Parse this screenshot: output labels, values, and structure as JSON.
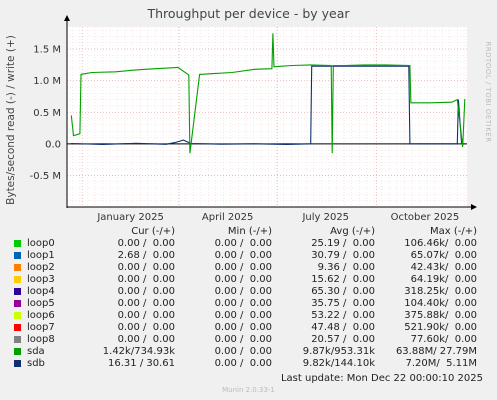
{
  "title": "Throughput per device - by year",
  "watermark": "RRDTOOL / TOBI OETIKER",
  "chart_data": {
    "type": "line",
    "title": "Throughput per device - by year",
    "ylabel": "Bytes/second read (-) / write (+)",
    "ylim": [
      -1000000,
      1850000
    ],
    "yticks": [
      {
        "value": 1500000,
        "label": "1.5 M"
      },
      {
        "value": 1000000,
        "label": "1.0 M"
      },
      {
        "value": 500000,
        "label": "0.5 M"
      },
      {
        "value": 0,
        "label": "0.0"
      },
      {
        "value": -500000,
        "label": "-0.5 M"
      }
    ],
    "xticks": [
      "January 2025",
      "April 2025",
      "July 2025",
      "October 2025"
    ],
    "grid": true,
    "series": [
      {
        "name": "sda",
        "color": "#00a000",
        "x": [
          "2024-12-22",
          "2024-12-24",
          "2024-12-30",
          "2024-12-31",
          "2025-01-10",
          "2025-02-01",
          "2025-02-20",
          "2025-03-10",
          "2025-03-31",
          "2025-04-10",
          "2025-04-11",
          "2025-04-20",
          "2025-05-01",
          "2025-05-20",
          "2025-06-10",
          "2025-06-26",
          "2025-06-27",
          "2025-06-28",
          "2025-07-05",
          "2025-07-15",
          "2025-08-01",
          "2025-08-20",
          "2025-08-21",
          "2025-08-22",
          "2025-09-01",
          "2025-09-20",
          "2025-10-10",
          "2025-11-01",
          "2025-11-02",
          "2025-11-20",
          "2025-12-10",
          "2025-12-15",
          "2025-12-20",
          "2025-12-22"
        ],
        "y": [
          450000,
          130000,
          160000,
          1100000,
          1130000,
          1140000,
          1170000,
          1190000,
          1210000,
          1090000,
          -150000,
          1100000,
          1110000,
          1130000,
          1180000,
          1190000,
          1750000,
          1220000,
          1230000,
          1240000,
          1250000,
          1240000,
          -150000,
          1240000,
          1240000,
          1250000,
          1250000,
          1240000,
          650000,
          650000,
          660000,
          700000,
          -50000,
          710000
        ]
      },
      {
        "name": "sdb",
        "color": "#0f2f6f",
        "x": [
          "2024-12-22",
          "2025-01-20",
          "2025-02-20",
          "2025-03-20",
          "2025-03-28",
          "2025-04-05",
          "2025-04-12",
          "2025-05-10",
          "2025-06-10",
          "2025-07-10",
          "2025-08-01",
          "2025-08-02",
          "2025-09-01",
          "2025-10-01",
          "2025-10-31",
          "2025-11-01",
          "2025-12-15",
          "2025-12-16",
          "2025-12-19",
          "2025-12-22"
        ],
        "y": [
          5000,
          -10000,
          8000,
          -8000,
          20000,
          60000,
          5000,
          -5000,
          0,
          -10000,
          0,
          1230000,
          1230000,
          1230000,
          1230000,
          0,
          0,
          700000,
          0,
          0
        ]
      },
      {
        "name": "loop0",
        "color": "#00cc00",
        "x": [],
        "y": []
      },
      {
        "name": "loop1",
        "color": "#0066b3",
        "x": [],
        "y": []
      },
      {
        "name": "loop2",
        "color": "#ff8000",
        "x": [],
        "y": []
      },
      {
        "name": "loop3",
        "color": "#ffcc00",
        "x": [],
        "y": []
      },
      {
        "name": "loop4",
        "color": "#330099",
        "x": [],
        "y": []
      },
      {
        "name": "loop5",
        "color": "#990099",
        "x": [],
        "y": []
      },
      {
        "name": "loop6",
        "color": "#ccff00",
        "x": [],
        "y": []
      },
      {
        "name": "loop7",
        "color": "#ff0000",
        "x": [],
        "y": []
      },
      {
        "name": "loop8",
        "color": "#808080",
        "x": [],
        "y": []
      }
    ]
  },
  "legend": {
    "headers": {
      "cur": "Cur (-/+)",
      "min": "Min (-/+)",
      "avg": "Avg (-/+)",
      "max": "Max (-/+)"
    },
    "rows": [
      {
        "name": "loop0",
        "color": "#00cc00",
        "cur": "0.00 /  0.00",
        "min": "0.00 /  0.00",
        "avg": "25.19 /  0.00",
        "max": "106.46k/  0.00"
      },
      {
        "name": "loop1",
        "color": "#0066b3",
        "cur": "2.68 /  0.00",
        "min": "0.00 /  0.00",
        "avg": "30.79 /  0.00",
        "max": "65.07k/  0.00"
      },
      {
        "name": "loop2",
        "color": "#ff8000",
        "cur": "0.00 /  0.00",
        "min": "0.00 /  0.00",
        "avg": "9.36 /  0.00",
        "max": "42.43k/  0.00"
      },
      {
        "name": "loop3",
        "color": "#ffcc00",
        "cur": "0.00 /  0.00",
        "min": "0.00 /  0.00",
        "avg": "15.62 /  0.00",
        "max": "64.19k/  0.00"
      },
      {
        "name": "loop4",
        "color": "#330099",
        "cur": "0.00 /  0.00",
        "min": "0.00 /  0.00",
        "avg": "65.30 /  0.00",
        "max": "318.25k/  0.00"
      },
      {
        "name": "loop5",
        "color": "#990099",
        "cur": "0.00 /  0.00",
        "min": "0.00 /  0.00",
        "avg": "35.75 /  0.00",
        "max": "104.40k/  0.00"
      },
      {
        "name": "loop6",
        "color": "#ccff00",
        "cur": "0.00 /  0.00",
        "min": "0.00 /  0.00",
        "avg": "53.22 /  0.00",
        "max": "375.88k/  0.00"
      },
      {
        "name": "loop7",
        "color": "#ff0000",
        "cur": "0.00 /  0.00",
        "min": "0.00 /  0.00",
        "avg": "47.48 /  0.00",
        "max": "521.90k/  0.00"
      },
      {
        "name": "loop8",
        "color": "#808080",
        "cur": "0.00 /  0.00",
        "min": "0.00 /  0.00",
        "avg": "20.57 /  0.00",
        "max": "77.60k/  0.00"
      },
      {
        "name": "sda",
        "color": "#00a000",
        "cur": "1.42k/734.93k",
        "min": "0.00 /  0.00",
        "avg": "9.87k/953.31k",
        "max": "63.88M/ 27.79M"
      },
      {
        "name": "sdb",
        "color": "#0f2f6f",
        "cur": "16.31 / 30.61",
        "min": "0.00 /  0.00",
        "avg": "9.82k/144.10k",
        "max": "7.20M/  5.11M"
      }
    ]
  },
  "last_update": "Last update:  Mon Dec 22 00:00:10 2025",
  "footer": "Munin 2.0.33-1"
}
